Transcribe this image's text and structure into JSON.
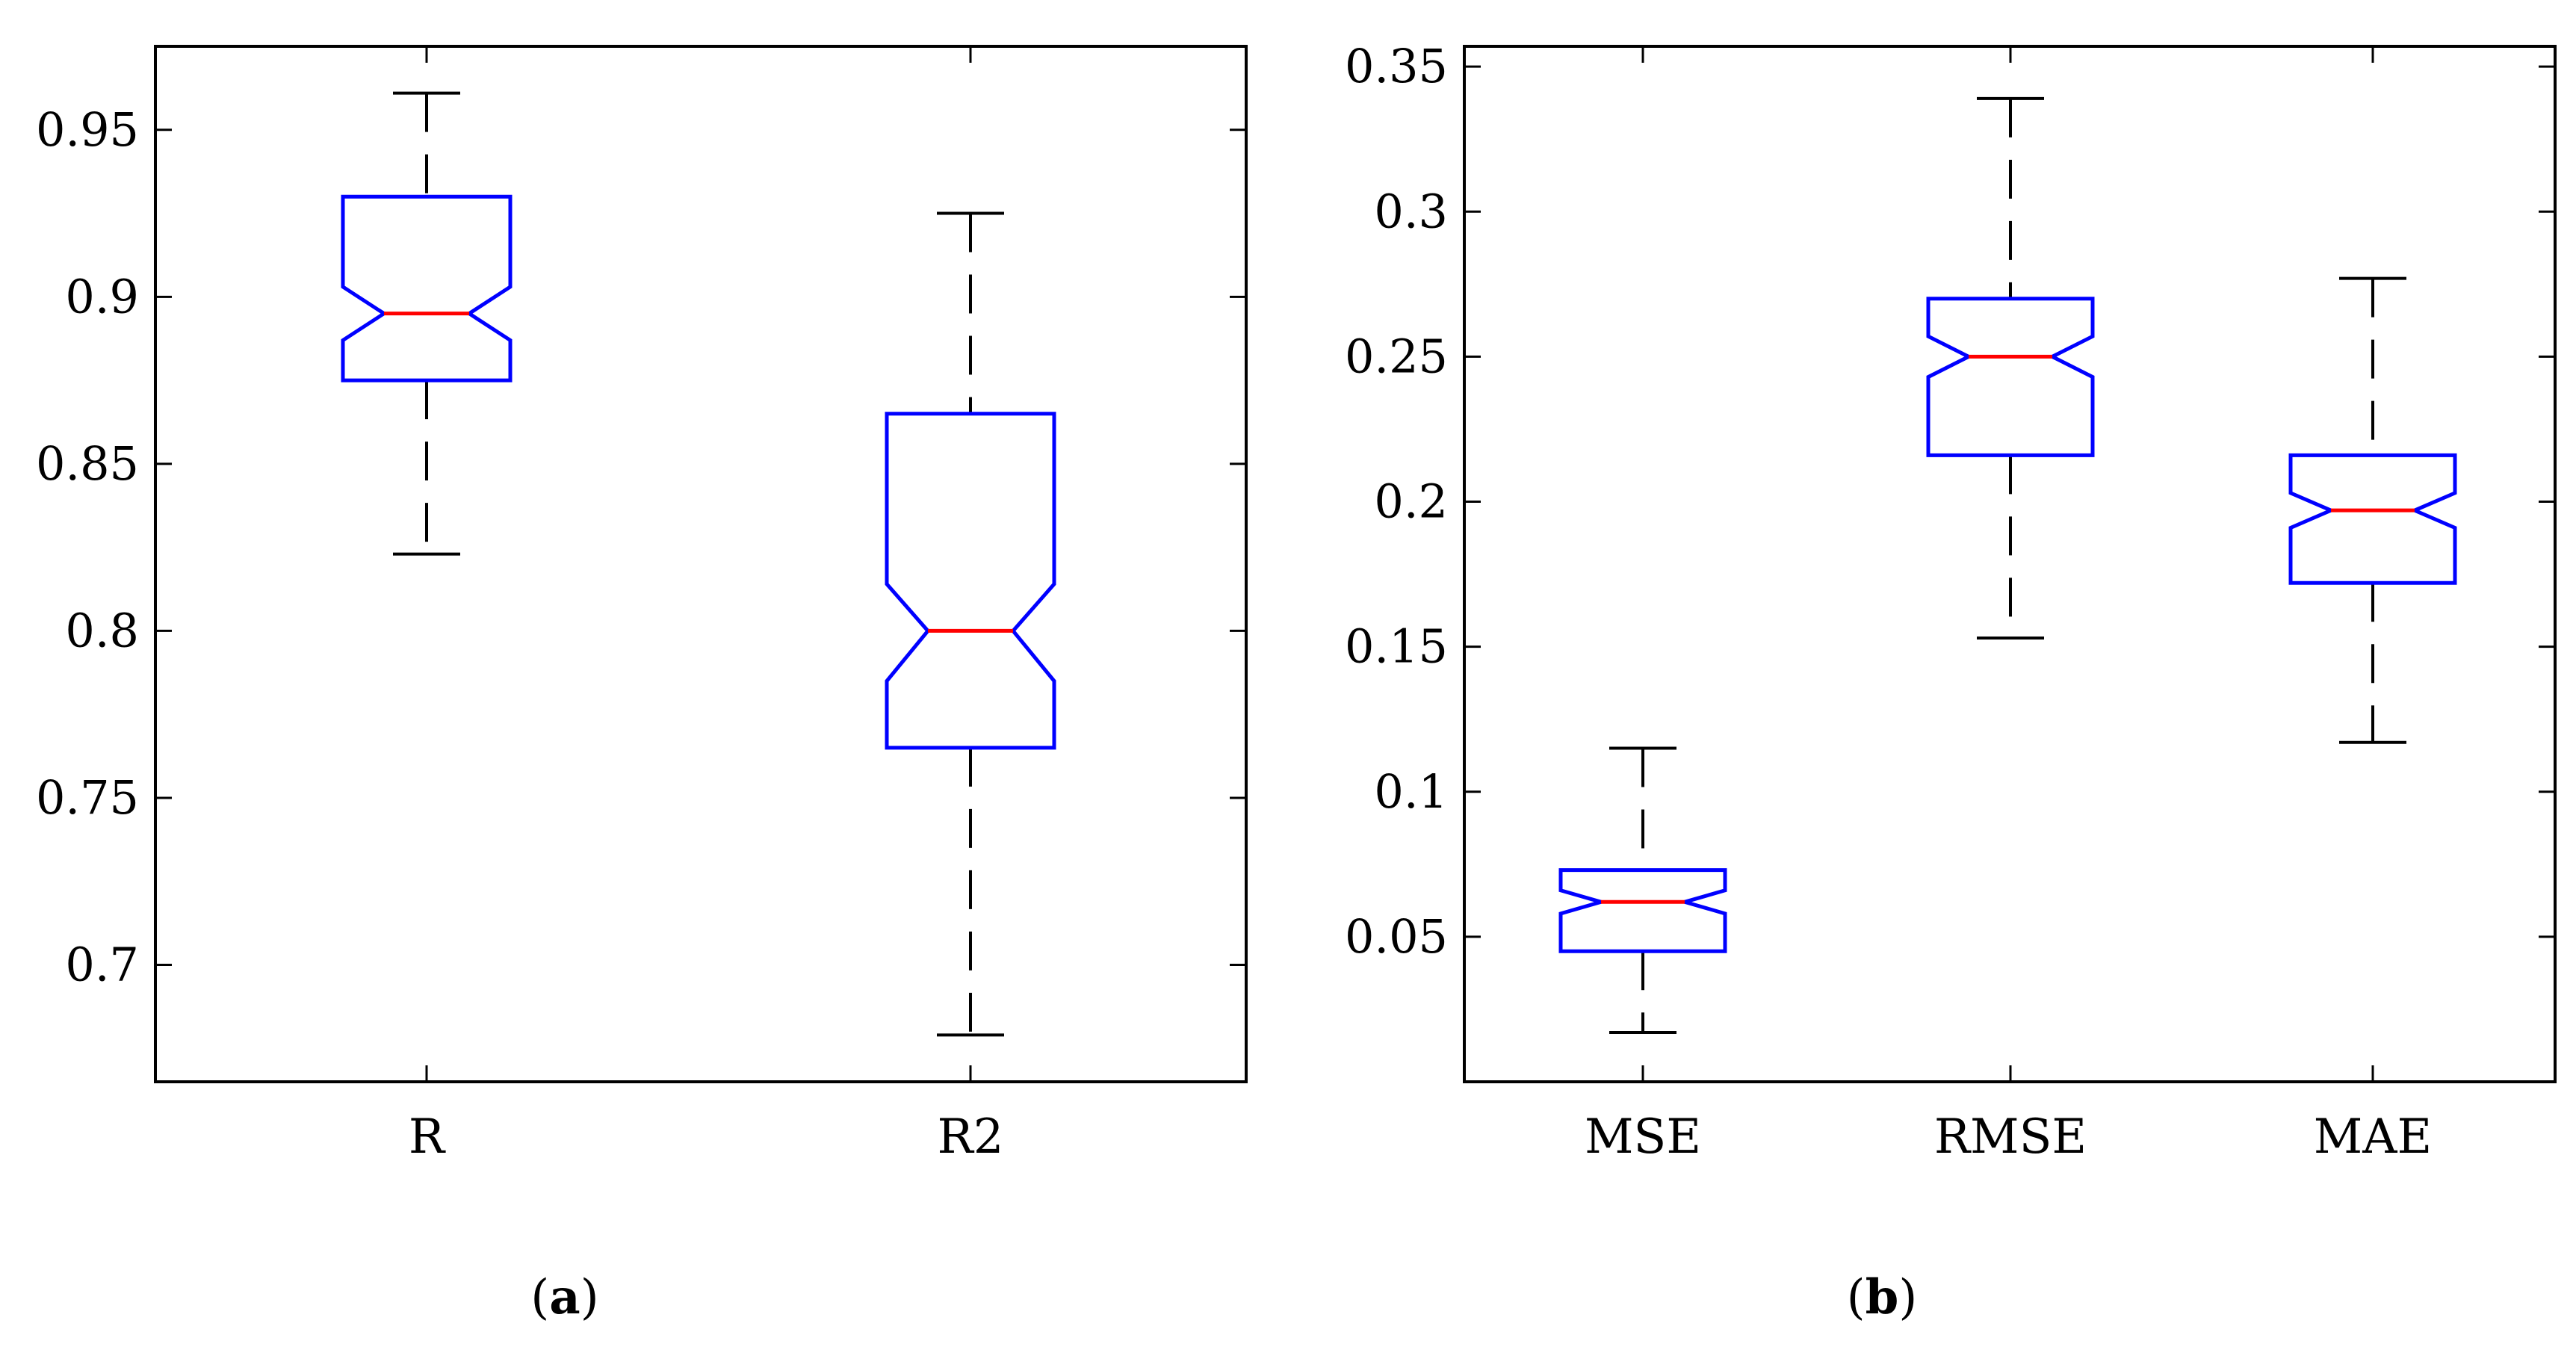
{
  "colors": {
    "box": "#0000ff",
    "median": "#ff0000",
    "whisker": "#000000",
    "axis": "#000000"
  },
  "panel_labels": [
    {
      "open": "(",
      "letter": "a",
      "close": ")"
    },
    {
      "open": "(",
      "letter": "b",
      "close": ")"
    }
  ],
  "chart_data": [
    {
      "type": "boxplot",
      "notched": true,
      "ylim": [
        0.665,
        0.975
      ],
      "yticks": [
        0.7,
        0.75,
        0.8,
        0.85,
        0.9,
        0.95
      ],
      "ytick_labels": [
        "0.7",
        "0.75",
        "0.8",
        "0.85",
        "0.9",
        "0.95"
      ],
      "categories": [
        "R",
        "R2"
      ],
      "boxes": [
        {
          "whisker_low": 0.823,
          "q1": 0.875,
          "median": 0.895,
          "q3": 0.93,
          "whisker_high": 0.961,
          "notch_low": 0.887,
          "notch_high": 0.903
        },
        {
          "whisker_low": 0.679,
          "q1": 0.765,
          "median": 0.8,
          "q3": 0.865,
          "whisker_high": 0.925,
          "notch_low": 0.785,
          "notch_high": 0.814
        }
      ]
    },
    {
      "type": "boxplot",
      "notched": true,
      "ylim": [
        0.0,
        0.357
      ],
      "yticks": [
        0.05,
        0.1,
        0.15,
        0.2,
        0.25,
        0.3,
        0.35
      ],
      "ytick_labels": [
        "0.05",
        "0.1",
        "0.15",
        "0.2",
        "0.25",
        "0.3",
        "0.35"
      ],
      "categories": [
        "MSE",
        "RMSE",
        "MAE"
      ],
      "boxes": [
        {
          "whisker_low": 0.017,
          "q1": 0.045,
          "median": 0.062,
          "q3": 0.073,
          "whisker_high": 0.115,
          "notch_low": 0.058,
          "notch_high": 0.066
        },
        {
          "whisker_low": 0.153,
          "q1": 0.216,
          "median": 0.25,
          "q3": 0.27,
          "whisker_high": 0.339,
          "notch_low": 0.243,
          "notch_high": 0.257
        },
        {
          "whisker_low": 0.117,
          "q1": 0.172,
          "median": 0.197,
          "q3": 0.216,
          "whisker_high": 0.277,
          "notch_low": 0.191,
          "notch_high": 0.203
        }
      ]
    }
  ]
}
